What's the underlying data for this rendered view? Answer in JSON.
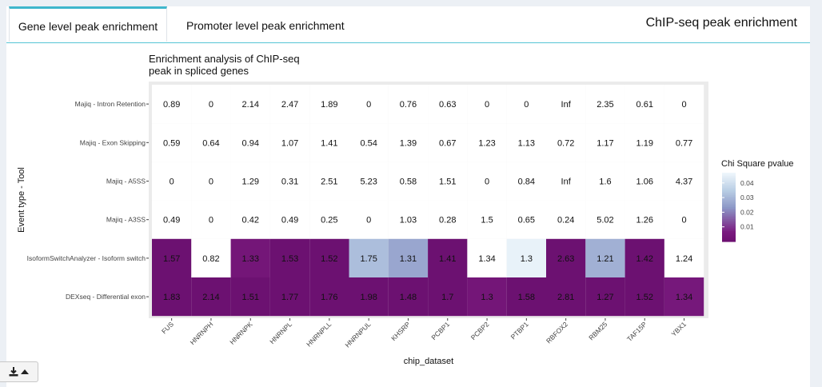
{
  "tabs": [
    {
      "label": "Gene level peak enrichment",
      "active": true
    },
    {
      "label": "Promoter level peak enrichment",
      "active": false
    }
  ],
  "box_title": "ChIP-seq peak enrichment",
  "download_button": {
    "icon": "download-icon",
    "caret": "caret-up-icon"
  },
  "chart_data": {
    "type": "heatmap",
    "title": "Enrichment analysis of ChIP-seq\npeak in spliced genes",
    "xlabel": "chip_dataset",
    "ylabel": "Event type - Tool",
    "x_categories": [
      "FUS",
      "HNRNPH",
      "HNRNPK",
      "HNRNPL",
      "HNRNPLL",
      "HNRNPUL",
      "KHSRP",
      "PCBP1",
      "PCBP2",
      "PTBP1",
      "RBFOX2",
      "RBM25",
      "TAF15P",
      "YBX1"
    ],
    "y_categories": [
      "Majiq - Intron Retention",
      "Majiq - Exon Skipping",
      "Majiq - A5SS",
      "Majiq - A3SS",
      "IsoformSwitchAnalyzer - Isoform switch",
      "DEXseq - Differential exon"
    ],
    "values": [
      [
        "0.89",
        "0",
        "2.14",
        "2.47",
        "1.89",
        "0",
        "0.76",
        "0.63",
        "0",
        "0",
        "Inf",
        "2.35",
        "0.61",
        "0"
      ],
      [
        "0.59",
        "0.64",
        "0.94",
        "1.07",
        "1.41",
        "0.54",
        "1.39",
        "0.67",
        "1.23",
        "1.13",
        "0.72",
        "1.17",
        "1.19",
        "0.77"
      ],
      [
        "0",
        "0",
        "1.29",
        "0.31",
        "2.51",
        "5.23",
        "0.58",
        "1.51",
        "0",
        "0.84",
        "Inf",
        "1.6",
        "1.06",
        "4.37"
      ],
      [
        "0.49",
        "0",
        "0.42",
        "0.49",
        "0.25",
        "0",
        "1.03",
        "0.28",
        "1.5",
        "0.65",
        "0.24",
        "5.02",
        "1.26",
        "0"
      ],
      [
        "1.57",
        "0.82",
        "1.33",
        "1.53",
        "1.52",
        "1.75",
        "1.31",
        "1.41",
        "1.34",
        "1.3",
        "2.63",
        "1.21",
        "1.42",
        "1.24"
      ],
      [
        "1.83",
        "2.14",
        "1.51",
        "1.77",
        "1.76",
        "1.98",
        "1.48",
        "1.7",
        "1.3",
        "1.58",
        "2.81",
        "1.27",
        "1.52",
        "1.34"
      ]
    ],
    "pvalues": [
      [
        null,
        null,
        null,
        null,
        null,
        null,
        null,
        null,
        null,
        null,
        null,
        null,
        null,
        null
      ],
      [
        null,
        null,
        null,
        null,
        null,
        null,
        null,
        null,
        null,
        null,
        null,
        null,
        null,
        null
      ],
      [
        null,
        null,
        null,
        null,
        null,
        null,
        null,
        null,
        null,
        null,
        null,
        null,
        null,
        null
      ],
      [
        null,
        null,
        null,
        null,
        null,
        null,
        null,
        null,
        null,
        null,
        null,
        null,
        null,
        null
      ],
      [
        0.001,
        null,
        0.004,
        0.001,
        0.001,
        0.032,
        0.027,
        0.001,
        null,
        0.046,
        0.001,
        0.029,
        0.001,
        null
      ],
      [
        0.001,
        0.001,
        0.001,
        0.001,
        0.001,
        0.001,
        0.001,
        0.001,
        0.004,
        0.001,
        0.001,
        0.001,
        0.001,
        0.005
      ]
    ],
    "legend": {
      "title": "Chi Square pvalue",
      "ticks": [
        "0.04",
        "0.03",
        "0.02",
        "0.01"
      ],
      "tick_values": [
        0.04,
        0.03,
        0.02,
        0.01
      ],
      "range": [
        0,
        0.047
      ],
      "placement": "right"
    },
    "colors": {
      "low": "#6a0f6e",
      "mid": "#8c96c6",
      "high": "#edf5fb",
      "missing": "#ffffff",
      "panel": "#ebebeb"
    }
  }
}
